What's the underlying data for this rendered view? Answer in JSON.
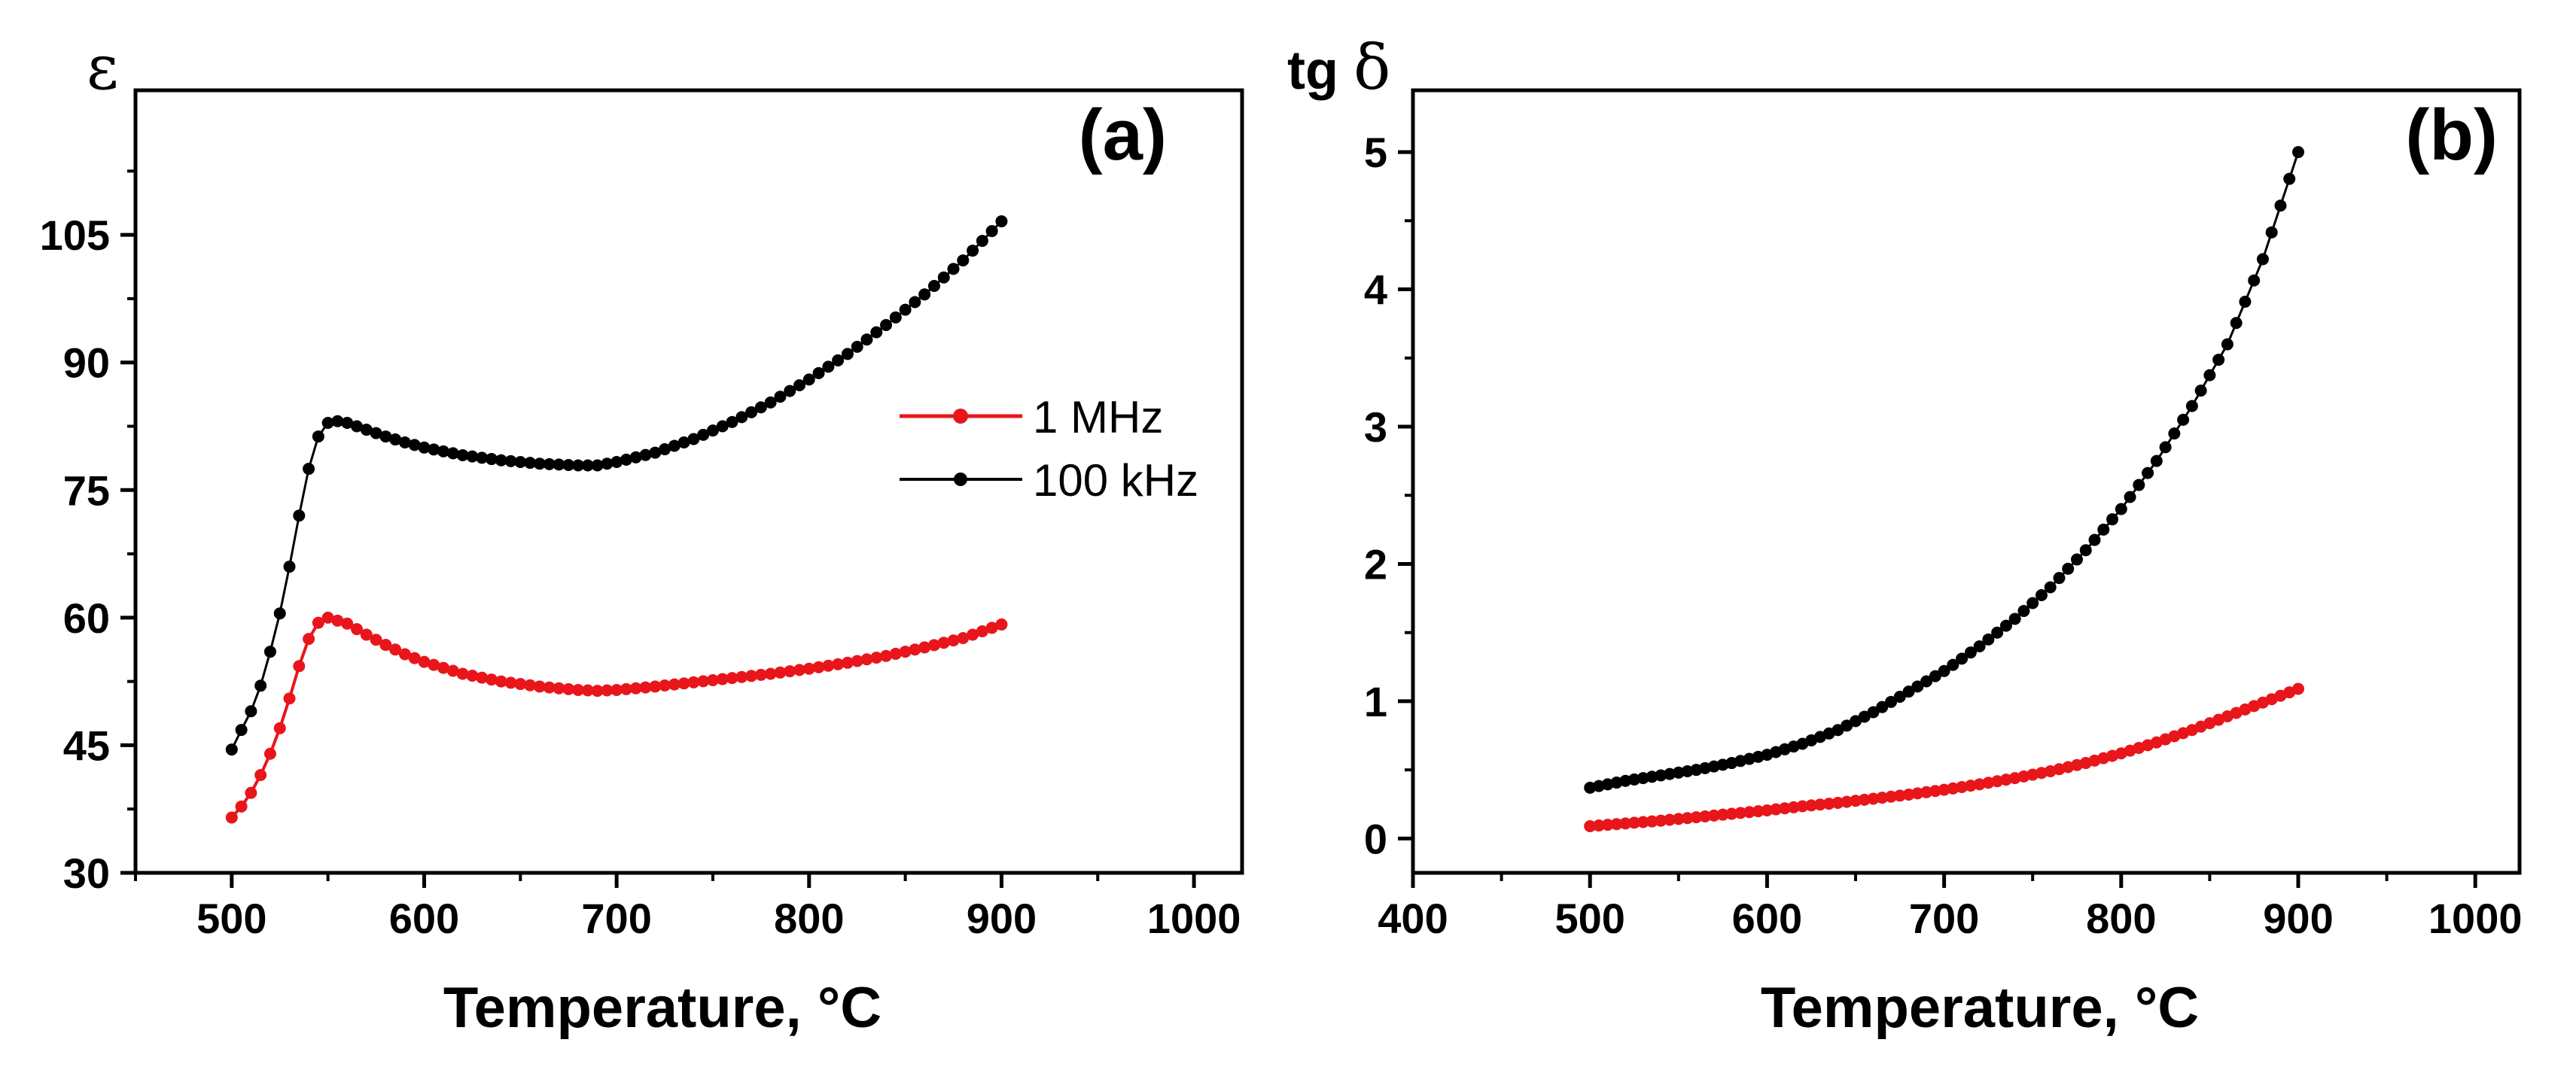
{
  "colors": {
    "series_1": "#e8161b",
    "series_2": "#000000",
    "frame": "#000000"
  },
  "chart_data": [
    {
      "type": "line",
      "panel_label": "(a)",
      "ylabel": "ε",
      "xlabel": "Temperature, °C",
      "xlim": [
        450,
        1025
      ],
      "ylim": [
        30,
        122
      ],
      "xticks": [
        500,
        600,
        700,
        800,
        900,
        1000
      ],
      "xtick_labels": [
        "500",
        "600",
        "700",
        "800",
        "900",
        "1000"
      ],
      "yticks": [
        30,
        45,
        60,
        75,
        90,
        105
      ],
      "ytick_labels": [
        "30",
        "45",
        "60",
        "75",
        "90",
        "105"
      ],
      "grid": false,
      "legend": {
        "position": "center-right",
        "entries": [
          "1 MHz",
          "100 kHz"
        ]
      },
      "series": [
        {
          "name": "1 MHz",
          "color": "#e8161b",
          "x": [
            500,
            505,
            510,
            515,
            520,
            525,
            530,
            535,
            540,
            545,
            550,
            560,
            570,
            580,
            590,
            600,
            620,
            640,
            660,
            680,
            690,
            700,
            720,
            740,
            760,
            780,
            800,
            820,
            840,
            860,
            880,
            900
          ],
          "y": [
            36.5,
            37.8,
            39.4,
            41.5,
            44.0,
            47.0,
            50.5,
            54.3,
            57.5,
            59.4,
            60.0,
            59.3,
            58.0,
            56.8,
            55.7,
            54.8,
            53.4,
            52.5,
            51.9,
            51.5,
            51.4,
            51.5,
            51.9,
            52.4,
            52.9,
            53.4,
            54.0,
            54.7,
            55.5,
            56.5,
            57.6,
            59.2
          ]
        },
        {
          "name": "100 kHz",
          "color": "#000000",
          "x": [
            500,
            505,
            510,
            515,
            520,
            525,
            530,
            535,
            540,
            545,
            550,
            555,
            560,
            570,
            580,
            590,
            600,
            620,
            640,
            660,
            680,
            690,
            700,
            720,
            740,
            760,
            780,
            800,
            820,
            840,
            860,
            880,
            900
          ],
          "y": [
            44.5,
            46.8,
            49.0,
            52.0,
            56.0,
            60.5,
            66.0,
            72.0,
            77.5,
            81.3,
            82.9,
            83.1,
            82.9,
            82.1,
            81.3,
            80.6,
            80.0,
            79.1,
            78.5,
            78.1,
            77.9,
            77.9,
            78.3,
            79.4,
            81.0,
            83.0,
            85.3,
            88.0,
            91.0,
            94.4,
            98.0,
            102.0,
            106.6
          ]
        }
      ]
    },
    {
      "type": "line",
      "panel_label": "(b)",
      "ylabel": "tg δ",
      "xlabel": "Temperature, °C",
      "xlim": [
        400,
        1025
      ],
      "ylim": [
        -0.25,
        5.45
      ],
      "xticks": [
        400,
        500,
        600,
        700,
        800,
        900,
        1000
      ],
      "xtick_labels": [
        "400",
        "500",
        "600",
        "700",
        "800",
        "900",
        "1000"
      ],
      "yticks": [
        0,
        1,
        2,
        3,
        4,
        5
      ],
      "ytick_labels": [
        "0",
        "1",
        "2",
        "3",
        "4",
        "5"
      ],
      "grid": false,
      "series": [
        {
          "name": "1 MHz",
          "color": "#e8161b",
          "x": [
            500,
            520,
            540,
            560,
            580,
            600,
            620,
            640,
            660,
            680,
            700,
            720,
            740,
            760,
            780,
            800,
            820,
            840,
            860,
            880,
            900
          ],
          "y": [
            0.09,
            0.11,
            0.13,
            0.155,
            0.18,
            0.205,
            0.235,
            0.26,
            0.29,
            0.32,
            0.355,
            0.395,
            0.44,
            0.49,
            0.55,
            0.62,
            0.7,
            0.79,
            0.89,
            0.99,
            1.09
          ]
        },
        {
          "name": "100 kHz",
          "color": "#000000",
          "x": [
            500,
            520,
            540,
            560,
            580,
            600,
            620,
            640,
            660,
            680,
            700,
            720,
            740,
            760,
            780,
            800,
            820,
            840,
            860,
            880,
            900
          ],
          "y": [
            0.37,
            0.42,
            0.46,
            0.5,
            0.55,
            0.61,
            0.69,
            0.79,
            0.92,
            1.07,
            1.22,
            1.4,
            1.6,
            1.83,
            2.1,
            2.4,
            2.75,
            3.15,
            3.6,
            4.22,
            5.0
          ]
        }
      ]
    }
  ]
}
